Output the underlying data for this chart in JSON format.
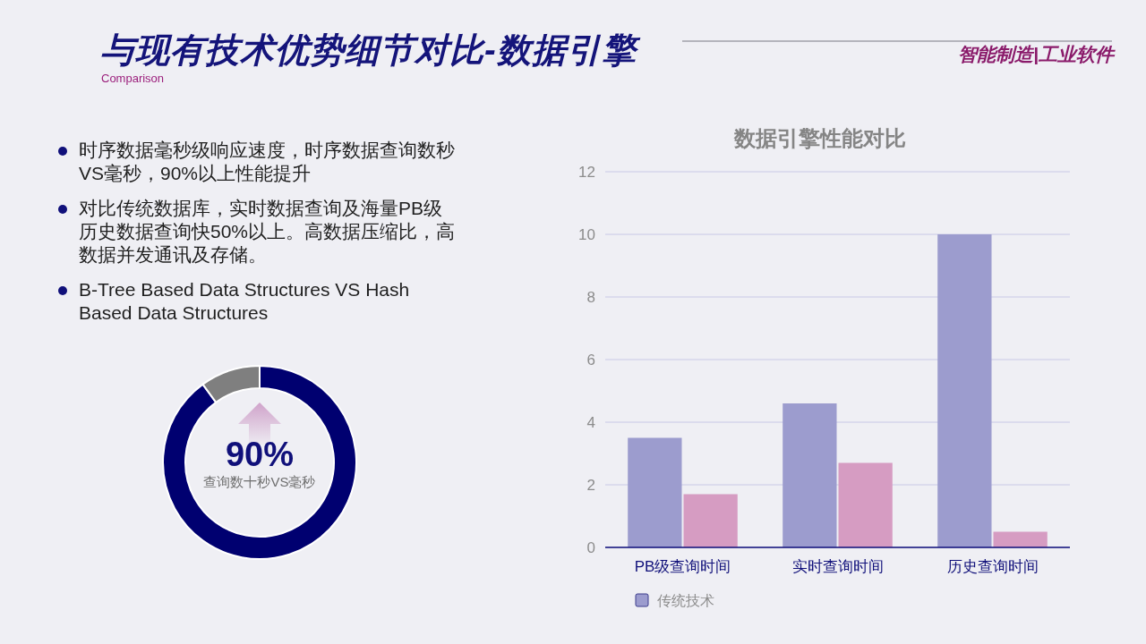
{
  "chart_data": [
    {
      "type": "other",
      "title": "与现有技术优势细节对比-数据引擎",
      "subtitle": "Comparison",
      "annotations": [
        "智能制造|工业软件",
        "时序数据毫秒级响应速度，时序数据查询数秒VS毫秒，90%以上性能提升",
        "对比传统数据库，实时数据查询及海量PB级历史数据查询快50%以上。高数据压缩比，高数据并发通讯及存储。",
        "B-Tree Based Data Structures VS Hash Based Data Structures"
      ]
    },
    {
      "type": "donut",
      "categories": [
        null,
        null
      ],
      "values": [
        90,
        10
      ],
      "colors": [
        "#000070",
        "#7f7f7f"
      ],
      "annotations": [
        "90%",
        "查询数十秒VS毫秒"
      ]
    },
    {
      "type": "bar",
      "title": "数据引擎性能对比",
      "categories": [
        "PB级查询时间",
        "实时查询时间",
        "历史查询时间"
      ],
      "series": [
        {
          "name": "传统技术",
          "color": "#9c9cce",
          "values": [
            3.5,
            4.6,
            10
          ]
        },
        {
          "color": "#d69cc2",
          "values": [
            1.7,
            2.7,
            0.5
          ]
        }
      ],
      "ylim": [
        0,
        12
      ],
      "yticks": [
        0,
        2,
        4,
        6,
        8,
        10,
        12
      ],
      "grid": "y",
      "legend": "bottom"
    }
  ]
}
